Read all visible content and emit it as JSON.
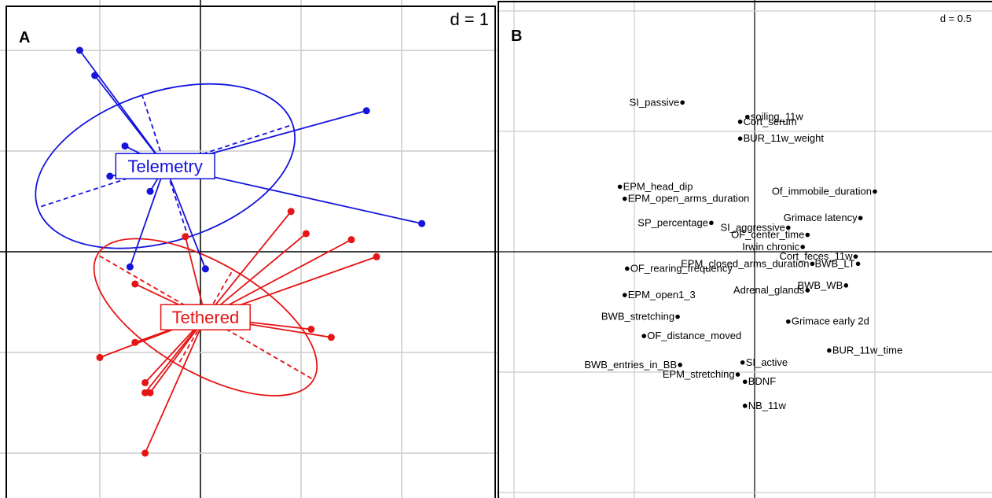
{
  "chart_data": [
    {
      "type": "scatter",
      "panel_letter": "A",
      "scale_label": "d = 1",
      "grid": true,
      "ellipse_style": "between-class scatter with stars and inertia ellipses",
      "groups": [
        {
          "name": "Telemetry",
          "color": "#1414dc",
          "centroid": [
            -0.35,
            0.85
          ],
          "ellipse": {
            "cx": -0.35,
            "cy": 0.85,
            "rx": 2.15,
            "ry": 0.95,
            "angle_deg": -18
          },
          "points": [
            [
              -1.2,
              2.0
            ],
            [
              -1.05,
              1.75
            ],
            [
              -0.75,
              1.05
            ],
            [
              -0.9,
              0.75
            ],
            [
              -0.5,
              0.6
            ],
            [
              1.65,
              1.4
            ],
            [
              2.2,
              0.28
            ],
            [
              -0.7,
              -0.15
            ],
            [
              0.05,
              -0.17
            ]
          ]
        },
        {
          "name": "Tethered",
          "color": "#e61414",
          "centroid": [
            0.05,
            -0.65
          ],
          "ellipse": {
            "cx": 0.05,
            "cy": -0.65,
            "rx": 2.0,
            "ry": 0.7,
            "angle_deg": 30
          },
          "points": [
            [
              0.9,
              0.4
            ],
            [
              1.05,
              0.18
            ],
            [
              1.5,
              0.12
            ],
            [
              1.75,
              -0.05
            ],
            [
              -0.65,
              -0.32
            ],
            [
              -0.15,
              0.15
            ],
            [
              -0.65,
              -0.9
            ],
            [
              -1.0,
              -1.05
            ],
            [
              -0.55,
              -1.3
            ],
            [
              -0.5,
              -1.4
            ],
            [
              -0.55,
              -1.4
            ],
            [
              1.3,
              -0.85
            ],
            [
              1.1,
              -0.77
            ],
            [
              -0.55,
              -2.0
            ]
          ]
        }
      ]
    },
    {
      "type": "scatter",
      "panel_letter": "B",
      "scale_label": "d = 0.5",
      "grid": true,
      "points": [
        {
          "label": "SI_passive",
          "x": -0.3,
          "y": 0.62
        },
        {
          "label": "soiling_11w",
          "x": -0.03,
          "y": 0.56
        },
        {
          "label": "Cort_serum",
          "x": -0.06,
          "y": 0.54
        },
        {
          "label": "BUR_11w_weight",
          "x": -0.06,
          "y": 0.47
        },
        {
          "label": "EPM_head_dip",
          "x": -0.56,
          "y": 0.27
        },
        {
          "label": "EPM_open_arms_duration",
          "x": -0.54,
          "y": 0.22
        },
        {
          "label": "SP_percentage",
          "x": -0.18,
          "y": 0.12
        },
        {
          "label": "Of_immobile_duration",
          "x": 0.5,
          "y": 0.25
        },
        {
          "label": "Grimace latency",
          "x": 0.44,
          "y": 0.14
        },
        {
          "label": "SI_aggressive",
          "x": 0.14,
          "y": 0.1
        },
        {
          "label": "OF_center_time",
          "x": 0.22,
          "y": 0.07
        },
        {
          "label": "Irwin chronic",
          "x": 0.2,
          "y": 0.02
        },
        {
          "label": "Cort_feces_11w",
          "x": 0.42,
          "y": -0.02
        },
        {
          "label": "EPM_closed_arms_duration",
          "x": 0.24,
          "y": -0.05
        },
        {
          "label": "BWB_LT",
          "x": 0.43,
          "y": -0.05
        },
        {
          "label": "Adrenal_glands",
          "x": 0.22,
          "y": -0.16
        },
        {
          "label": "BWB_WB",
          "x": 0.38,
          "y": -0.14
        },
        {
          "label": "OF_rearing_frequency",
          "x": -0.53,
          "y": -0.07
        },
        {
          "label": "EPM_open1_3",
          "x": -0.54,
          "y": -0.18
        },
        {
          "label": "BWB_stretching",
          "x": -0.32,
          "y": -0.27
        },
        {
          "label": "OF_distance_moved",
          "x": -0.46,
          "y": -0.35
        },
        {
          "label": "Grimace early 2d",
          "x": 0.14,
          "y": -0.29
        },
        {
          "label": "BUR_11w_time",
          "x": 0.31,
          "y": -0.41
        },
        {
          "label": "BWB_entries_in_BB",
          "x": -0.31,
          "y": -0.47
        },
        {
          "label": "SI_active",
          "x": -0.05,
          "y": -0.46
        },
        {
          "label": "EPM_stretching",
          "x": -0.07,
          "y": -0.51
        },
        {
          "label": "BDNF",
          "x": -0.04,
          "y": -0.54
        },
        {
          "label": "NB_11w",
          "x": -0.04,
          "y": -0.64
        }
      ]
    }
  ]
}
